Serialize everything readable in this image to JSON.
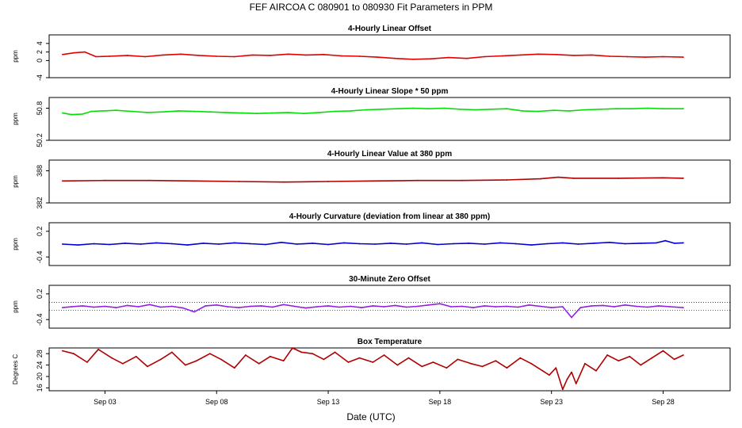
{
  "figure_title": "FEF   AIRCOA C   080901 to 080930   Fit Parameters in PPM",
  "x_axis_title": "Date (UTC)",
  "chart_data": {
    "type": "line",
    "x_domain": [
      0.5,
      31.0
    ],
    "x_ticks": [
      {
        "day": 3,
        "label": "Sep 03"
      },
      {
        "day": 8,
        "label": "Sep 08"
      },
      {
        "day": 13,
        "label": "Sep 13"
      },
      {
        "day": 18,
        "label": "Sep 18"
      },
      {
        "day": 23,
        "label": "Sep 23"
      },
      {
        "day": 28,
        "label": "Sep 28"
      }
    ],
    "panels": [
      {
        "id": "offset",
        "title": "4-Hourly Linear Offset",
        "ylabel": "ppm",
        "color": "#e00000",
        "ylim": [
          -4,
          6
        ],
        "yticks": [
          "-4",
          "0",
          "2",
          "4"
        ],
        "ytick_values": [
          -4,
          0,
          2,
          4
        ],
        "ref_lines": [],
        "x": [
          1.1,
          1.6,
          2.1,
          2.6,
          3.2,
          4.0,
          4.8,
          5.6,
          6.4,
          7.2,
          8.0,
          8.8,
          9.6,
          10.4,
          11.2,
          12.0,
          12.8,
          13.6,
          14.4,
          15.2,
          16.0,
          16.8,
          17.6,
          18.4,
          19.2,
          20.0,
          20.8,
          21.6,
          22.4,
          23.2,
          24.0,
          24.8,
          25.6,
          26.4,
          27.2,
          28.0,
          28.9
        ],
        "y": [
          1.4,
          1.8,
          2.0,
          0.9,
          1.0,
          1.2,
          0.9,
          1.3,
          1.5,
          1.2,
          1.0,
          0.9,
          1.3,
          1.2,
          1.5,
          1.3,
          1.4,
          1.1,
          1.0,
          0.8,
          0.5,
          0.3,
          0.4,
          0.7,
          0.5,
          0.9,
          1.1,
          1.3,
          1.5,
          1.4,
          1.2,
          1.3,
          1.0,
          0.9,
          0.8,
          0.9,
          0.8
        ]
      },
      {
        "id": "slope",
        "title": "4-Hourly Linear Slope * 50 ppm",
        "ylabel": "ppm",
        "color": "#00e000",
        "ylim": [
          50.2,
          51.0
        ],
        "yticks": [
          "50.2",
          "50.8"
        ],
        "ytick_values": [
          50.2,
          50.8
        ],
        "ref_lines": [],
        "x": [
          1.1,
          1.5,
          2.0,
          2.4,
          2.9,
          3.5,
          4.2,
          4.9,
          5.6,
          6.3,
          7.0,
          7.7,
          8.4,
          9.1,
          9.8,
          10.5,
          11.2,
          11.9,
          12.6,
          13.3,
          14.0,
          14.7,
          15.4,
          16.1,
          16.8,
          17.5,
          18.2,
          18.9,
          19.6,
          20.3,
          21.0,
          21.7,
          22.4,
          23.1,
          23.8,
          24.5,
          25.2,
          25.9,
          26.6,
          27.3,
          28.0,
          28.9
        ],
        "y": [
          50.71,
          50.68,
          50.69,
          50.74,
          50.75,
          50.76,
          50.74,
          50.72,
          50.73,
          50.75,
          50.74,
          50.73,
          50.72,
          50.71,
          50.7,
          50.71,
          50.72,
          50.7,
          50.72,
          50.74,
          50.75,
          50.77,
          50.78,
          50.79,
          50.8,
          50.79,
          50.8,
          50.78,
          50.77,
          50.78,
          50.79,
          50.75,
          50.74,
          50.76,
          50.75,
          50.77,
          50.78,
          50.79,
          50.79,
          50.8,
          50.79,
          50.79
        ]
      },
      {
        "id": "value380",
        "title": "4-Hourly Linear Value at 380 ppm",
        "ylabel": "ppm",
        "color": "#b00000",
        "ylim": [
          382,
          390
        ],
        "yticks": [
          "382",
          "388"
        ],
        "ytick_values": [
          382,
          388
        ],
        "ref_lines": [],
        "x": [
          1.1,
          3.0,
          5.0,
          7.0,
          9.0,
          11.0,
          13.0,
          15.0,
          17.0,
          19.0,
          21.0,
          22.5,
          23.3,
          24.0,
          26.0,
          28.0,
          28.9
        ],
        "y": [
          386.1,
          386.2,
          386.2,
          386.1,
          386.0,
          385.9,
          386.0,
          386.1,
          386.2,
          386.2,
          386.3,
          386.5,
          386.8,
          386.6,
          386.6,
          386.7,
          386.6
        ]
      },
      {
        "id": "curvature",
        "title": "4-Hourly Curvature (deviation from linear at 380 ppm)",
        "ylabel": "ppm",
        "color": "#0000d0",
        "ylim": [
          -0.6,
          0.4
        ],
        "yticks": [
          "-0.4",
          "0.2"
        ],
        "ytick_values": [
          -0.4,
          0.2
        ],
        "ref_lines": [],
        "x": [
          1.1,
          1.8,
          2.5,
          3.2,
          3.9,
          4.6,
          5.3,
          6.0,
          6.7,
          7.4,
          8.1,
          8.8,
          9.5,
          10.2,
          10.9,
          11.6,
          12.3,
          13.0,
          13.7,
          14.4,
          15.1,
          15.8,
          16.5,
          17.2,
          17.9,
          18.6,
          19.3,
          20.0,
          20.7,
          21.4,
          22.1,
          22.8,
          23.5,
          24.2,
          24.9,
          25.6,
          26.3,
          27.0,
          27.7,
          28.1,
          28.5,
          28.9
        ],
        "y": [
          -0.1,
          -0.12,
          -0.09,
          -0.11,
          -0.08,
          -0.1,
          -0.07,
          -0.09,
          -0.12,
          -0.08,
          -0.1,
          -0.07,
          -0.09,
          -0.11,
          -0.06,
          -0.1,
          -0.08,
          -0.11,
          -0.07,
          -0.09,
          -0.1,
          -0.08,
          -0.1,
          -0.07,
          -0.11,
          -0.09,
          -0.08,
          -0.1,
          -0.07,
          -0.09,
          -0.12,
          -0.09,
          -0.07,
          -0.1,
          -0.08,
          -0.06,
          -0.09,
          -0.08,
          -0.07,
          -0.02,
          -0.08,
          -0.07
        ]
      },
      {
        "id": "zero",
        "title": "30-Minute Zero Offset",
        "ylabel": "ppm",
        "color": "#9020e0",
        "ylim": [
          -0.6,
          0.4
        ],
        "yticks": [
          "-0.4",
          "0.2"
        ],
        "ytick_values": [
          -0.4,
          0.2
        ],
        "ref_lines": [
          0.0,
          -0.18
        ],
        "x": [
          1.1,
          1.5,
          2.0,
          2.5,
          3.0,
          3.5,
          4.0,
          4.5,
          5.0,
          5.5,
          6.0,
          6.5,
          7.0,
          7.5,
          8.0,
          8.5,
          9.0,
          9.5,
          10.0,
          10.5,
          11.0,
          11.5,
          12.0,
          12.5,
          13.0,
          13.5,
          14.0,
          14.5,
          15.0,
          15.5,
          16.0,
          16.5,
          17.0,
          17.5,
          18.0,
          18.5,
          19.0,
          19.5,
          20.0,
          20.5,
          21.0,
          21.5,
          22.0,
          22.5,
          23.0,
          23.5,
          23.9,
          24.3,
          24.8,
          25.3,
          25.8,
          26.3,
          26.8,
          27.3,
          27.8,
          28.3,
          28.9
        ],
        "y": [
          -0.12,
          -0.1,
          -0.08,
          -0.11,
          -0.09,
          -0.12,
          -0.07,
          -0.1,
          -0.05,
          -0.11,
          -0.09,
          -0.13,
          -0.22,
          -0.08,
          -0.06,
          -0.1,
          -0.12,
          -0.09,
          -0.08,
          -0.11,
          -0.05,
          -0.09,
          -0.13,
          -0.1,
          -0.08,
          -0.11,
          -0.09,
          -0.12,
          -0.08,
          -0.1,
          -0.07,
          -0.11,
          -0.09,
          -0.06,
          -0.03,
          -0.1,
          -0.09,
          -0.12,
          -0.08,
          -0.1,
          -0.09,
          -0.11,
          -0.06,
          -0.09,
          -0.12,
          -0.1,
          -0.35,
          -0.12,
          -0.08,
          -0.07,
          -0.1,
          -0.06,
          -0.09,
          -0.11,
          -0.08,
          -0.1,
          -0.12
        ]
      },
      {
        "id": "boxtemp",
        "title": "Box Temperature",
        "ylabel": "Degrees C",
        "color": "#b00000",
        "ylim": [
          15,
          30
        ],
        "yticks": [
          "16",
          "20",
          "24",
          "28"
        ],
        "ytick_values": [
          16,
          20,
          24,
          28
        ],
        "ref_lines": [],
        "x": [
          1.1,
          1.6,
          2.2,
          2.7,
          3.3,
          3.8,
          4.4,
          4.9,
          5.5,
          6.0,
          6.6,
          7.1,
          7.7,
          8.2,
          8.8,
          9.3,
          9.9,
          10.4,
          11.0,
          11.4,
          11.8,
          12.3,
          12.8,
          13.3,
          13.9,
          14.4,
          15.0,
          15.5,
          16.1,
          16.6,
          17.2,
          17.7,
          18.3,
          18.8,
          19.4,
          19.9,
          20.5,
          21.0,
          21.6,
          22.1,
          22.6,
          22.9,
          23.2,
          23.5,
          23.7,
          23.9,
          24.1,
          24.5,
          25.0,
          25.5,
          26.0,
          26.5,
          27.0,
          27.5,
          28.0,
          28.5,
          28.9
        ],
        "y": [
          29.0,
          28.0,
          25.0,
          29.5,
          26.5,
          24.5,
          27.0,
          23.5,
          26.0,
          28.5,
          24.0,
          25.5,
          28.0,
          26.0,
          23.0,
          27.5,
          24.5,
          27.0,
          25.5,
          30.0,
          28.5,
          28.0,
          26.0,
          28.5,
          25.0,
          26.5,
          25.0,
          27.5,
          24.0,
          26.5,
          23.5,
          25.0,
          23.0,
          26.0,
          24.5,
          23.5,
          25.5,
          23.0,
          26.5,
          24.5,
          22.0,
          20.5,
          23.0,
          15.5,
          19.0,
          21.5,
          17.5,
          24.5,
          22.0,
          27.5,
          25.5,
          27.0,
          24.0,
          26.5,
          29.0,
          26.0,
          27.5
        ]
      }
    ]
  }
}
